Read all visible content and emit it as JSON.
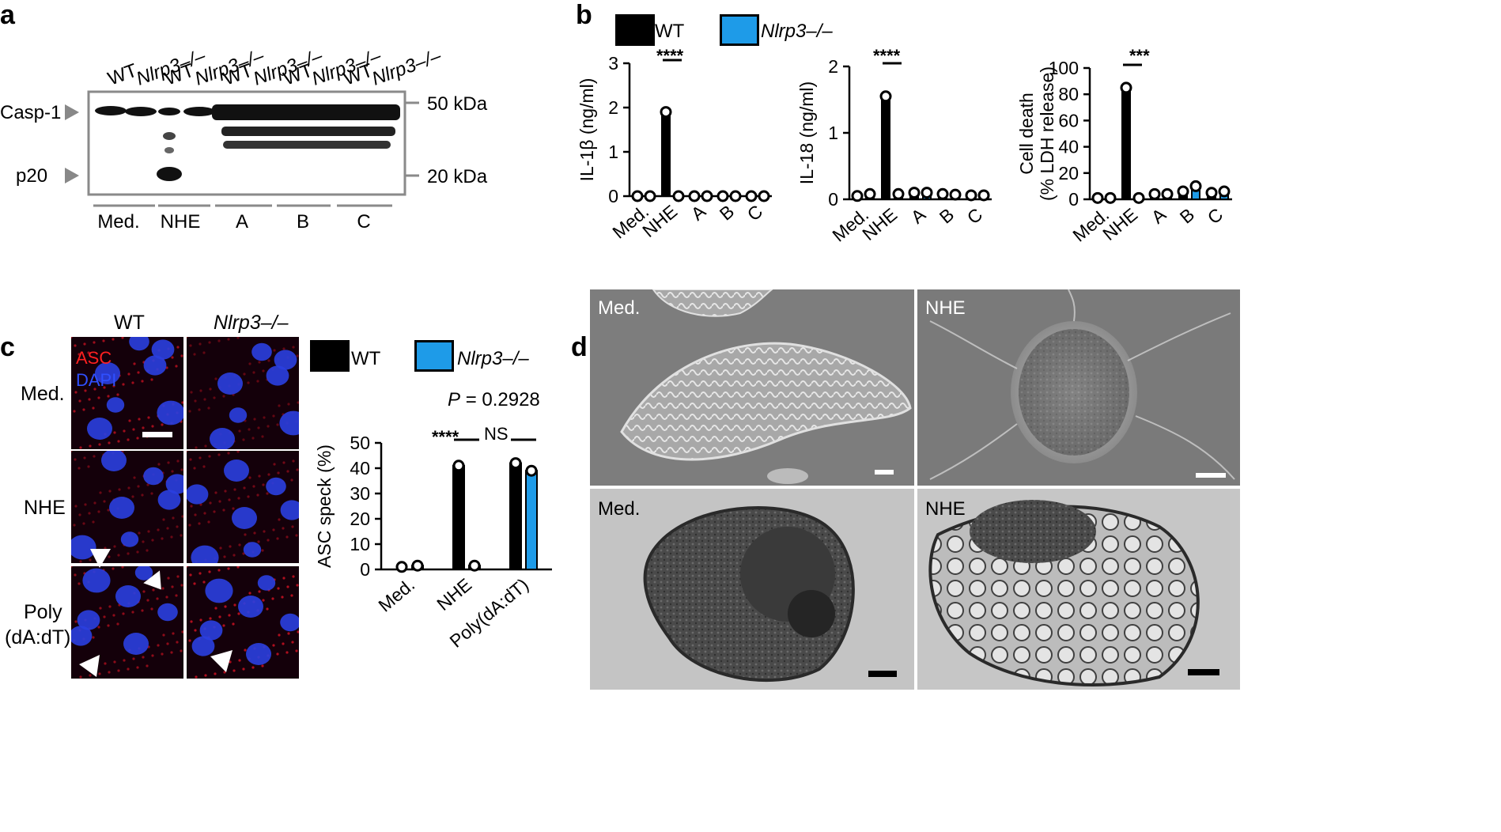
{
  "panels": {
    "a": {
      "letter": "a",
      "lane_labels": [
        "WT",
        "Nlrp3–/–",
        "WT",
        "Nlrp3–/–",
        "WT",
        "Nlrp3–/–",
        "WT",
        "Nlrp3–/–",
        "WT",
        "Nlrp3–/–"
      ],
      "band_labels": {
        "casp1": "Casp-1",
        "p20": "p20"
      },
      "markers": {
        "m50": "50 kDa",
        "m20": "20 kDa"
      },
      "groups": [
        "Med.",
        "NHE",
        "A",
        "B",
        "C"
      ]
    },
    "b": {
      "letter": "b",
      "legend": [
        {
          "name": "WT",
          "color": "#000000"
        },
        {
          "name": "Nlrp3–/–",
          "color": "#1e9be8"
        }
      ],
      "significance": [
        "****",
        "****",
        "***"
      ]
    },
    "c": {
      "letter": "c",
      "column_labels": [
        "WT",
        "Nlrp3–/–"
      ],
      "row_labels": [
        "Med.",
        "NHE",
        "Poly",
        "(dA:dT)"
      ],
      "stain_labels": {
        "asc": "ASC",
        "dapi": "DAPI"
      },
      "legend": [
        {
          "name": "WT",
          "color": "#000000"
        },
        {
          "name": "Nlrp3–/–",
          "color": "#1e9be8"
        }
      ],
      "p_value_label": "P",
      "p_value": "= 0.2928",
      "significance": [
        "****",
        "NS"
      ]
    },
    "d": {
      "letter": "d",
      "image_labels": [
        "Med.",
        "NHE",
        "Med.",
        "NHE"
      ]
    }
  },
  "chart_data": [
    {
      "id": "il1b",
      "type": "bar",
      "ylabel": "IL-1β (ng/ml)",
      "categories": [
        "Med.",
        "NHE",
        "A",
        "B",
        "C"
      ],
      "ylim": [
        0,
        3
      ],
      "yticks": [
        "0",
        "1",
        "2",
        "3"
      ],
      "series": [
        {
          "name": "WT",
          "values": [
            0,
            1.9,
            0,
            0,
            0
          ]
        },
        {
          "name": "Nlrp3–/–",
          "values": [
            0,
            0,
            0,
            0,
            0
          ]
        }
      ]
    },
    {
      "id": "il18",
      "type": "bar",
      "ylabel": "IL-18 (ng/ml)",
      "categories": [
        "Med.",
        "NHE",
        "A",
        "B",
        "C"
      ],
      "ylim": [
        0,
        2
      ],
      "yticks": [
        "0",
        "1",
        "2"
      ],
      "series": [
        {
          "name": "WT",
          "values": [
            0.05,
            1.55,
            0.1,
            0.08,
            0.06
          ]
        },
        {
          "name": "Nlrp3–/–",
          "values": [
            0.08,
            0.08,
            0.1,
            0.07,
            0.06
          ]
        }
      ]
    },
    {
      "id": "celldeath",
      "type": "bar",
      "ylabel": "Cell death",
      "ylabel2": "(% LDH release)",
      "categories": [
        "Med.",
        "NHE",
        "A",
        "B",
        "C"
      ],
      "ylim": [
        0,
        100
      ],
      "yticks": [
        "0",
        "20",
        "40",
        "60",
        "80",
        "100"
      ],
      "series": [
        {
          "name": "WT",
          "values": [
            1,
            85,
            4,
            6,
            5
          ]
        },
        {
          "name": "Nlrp3–/–",
          "values": [
            1,
            1,
            4,
            10,
            6
          ]
        }
      ]
    },
    {
      "id": "ascspeck",
      "type": "bar",
      "ylabel": "ASC speck (%)",
      "categories": [
        "Med.",
        "NHE",
        "Poly(dA:dT)"
      ],
      "ylim": [
        0,
        50
      ],
      "yticks": [
        "0",
        "10",
        "20",
        "30",
        "40",
        "50"
      ],
      "series": [
        {
          "name": "WT",
          "values": [
            1,
            41,
            42
          ]
        },
        {
          "name": "Nlrp3–/–",
          "values": [
            1.5,
            1.5,
            39
          ]
        }
      ]
    }
  ]
}
